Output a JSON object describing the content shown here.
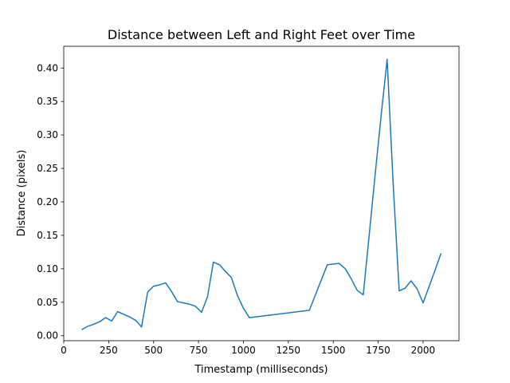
{
  "chart_data": {
    "type": "line",
    "title": "Distance between Left and Right Feet over Time",
    "xlabel": "Timestamp (milliseconds)",
    "ylabel": "Distance (pixels)",
    "xlim": [
      0,
      2200
    ],
    "ylim": [
      -0.0075,
      0.4325
    ],
    "x_ticks": [
      0,
      250,
      500,
      750,
      1000,
      1250,
      1500,
      1750,
      2000
    ],
    "y_ticks": [
      0.0,
      0.05,
      0.1,
      0.15,
      0.2,
      0.25,
      0.3,
      0.35,
      0.4
    ],
    "x_tick_labels": [
      "0",
      "250",
      "500",
      "750",
      "1000",
      "1250",
      "1500",
      "1750",
      "2000"
    ],
    "y_tick_labels": [
      "0.00",
      "0.05",
      "0.10",
      "0.15",
      "0.20",
      "0.25",
      "0.30",
      "0.35",
      "0.40"
    ],
    "grid": false,
    "line_color": "#1f77b4",
    "series": [
      {
        "x": [
          100,
          133,
          167,
          200,
          233,
          267,
          300,
          333,
          367,
          400,
          433,
          467,
          500,
          533,
          567,
          600,
          633,
          667,
          700,
          733,
          767,
          800,
          833,
          867,
          900,
          933,
          967,
          1000,
          1033,
          1367,
          1467,
          1533,
          1567,
          1600,
          1633,
          1667,
          1700,
          1733,
          1767,
          1800,
          1833,
          1867,
          1900,
          1933,
          1967,
          2000,
          2033,
          2067,
          2100
        ],
        "y": [
          0.009,
          0.014,
          0.017,
          0.021,
          0.027,
          0.022,
          0.036,
          0.032,
          0.028,
          0.023,
          0.013,
          0.065,
          0.074,
          0.076,
          0.079,
          0.066,
          0.051,
          0.049,
          0.047,
          0.044,
          0.035,
          0.058,
          0.11,
          0.106,
          0.096,
          0.087,
          0.06,
          0.041,
          0.027,
          0.038,
          0.106,
          0.108,
          0.1,
          0.085,
          0.068,
          0.061,
          0.15,
          0.24,
          0.33,
          0.413,
          0.23,
          0.067,
          0.071,
          0.082,
          0.07,
          0.049,
          0.073,
          0.098,
          0.123
        ]
      }
    ]
  }
}
